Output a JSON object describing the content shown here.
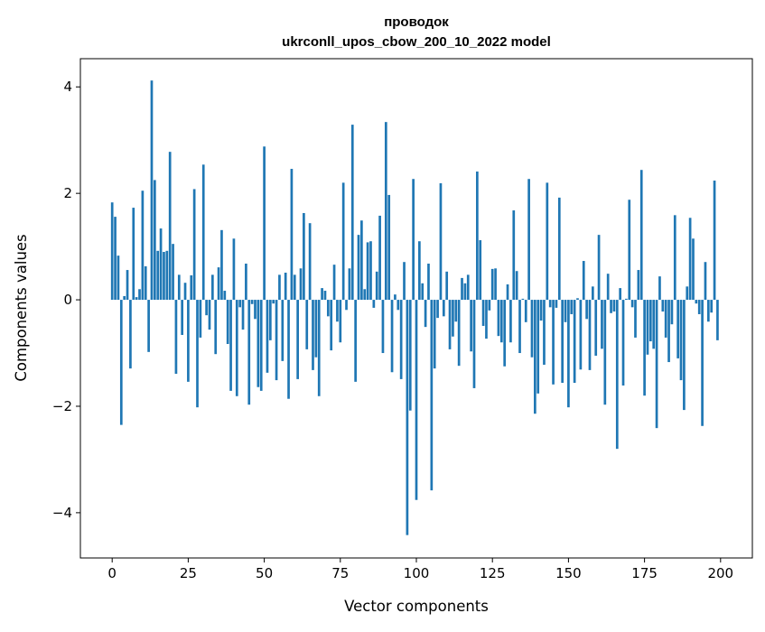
{
  "chart_data": {
    "type": "bar",
    "title": [
      "проводок",
      "ukrconll_upos_cbow_200_10_2022 model"
    ],
    "xlabel": "Vector components",
    "ylabel": "Components values",
    "xlim": [
      -10.45,
      210.45
    ],
    "ylim": [
      -4.85,
      4.53
    ],
    "xticks": [
      0,
      25,
      50,
      75,
      100,
      125,
      150,
      175,
      200
    ],
    "yticks": [
      -4,
      -2,
      0,
      2,
      4
    ],
    "xtick_labels": [
      "0",
      "25",
      "50",
      "75",
      "100",
      "125",
      "150",
      "175",
      "200"
    ],
    "ytick_labels": [
      "−4",
      "−2",
      "0",
      "2",
      "4"
    ],
    "grid": false,
    "bar_width": 0.8,
    "color": "#1f77b4",
    "values": [
      1.83,
      1.56,
      0.83,
      -2.35,
      0.07,
      0.56,
      -1.29,
      1.73,
      0.05,
      0.2,
      2.05,
      0.63,
      -0.98,
      4.12,
      2.25,
      0.92,
      1.34,
      0.9,
      0.92,
      2.78,
      1.05,
      -1.39,
      0.47,
      -0.66,
      0.32,
      -1.54,
      0.46,
      2.08,
      -2.02,
      -0.71,
      2.54,
      -0.29,
      -0.56,
      0.47,
      -1.02,
      0.61,
      1.31,
      0.17,
      -0.83,
      -1.71,
      1.15,
      -1.81,
      -0.14,
      -0.56,
      0.68,
      -1.97,
      -0.08,
      -0.36,
      -1.64,
      -1.71,
      2.88,
      -1.37,
      -0.76,
      -0.07,
      -1.51,
      0.47,
      -1.15,
      0.51,
      -1.86,
      2.46,
      0.47,
      -1.49,
      0.59,
      1.63,
      -0.93,
      1.44,
      -1.32,
      -1.08,
      -1.81,
      0.22,
      0.17,
      -0.31,
      -0.95,
      0.66,
      -0.41,
      -0.8,
      2.2,
      -0.19,
      0.59,
      3.29,
      -1.54,
      1.22,
      1.49,
      0.2,
      1.08,
      1.1,
      -0.15,
      0.53,
      1.58,
      -1.0,
      3.34,
      1.97,
      -1.36,
      0.1,
      -0.19,
      -1.49,
      0.71,
      -4.42,
      -2.08,
      2.27,
      -3.76,
      1.1,
      0.31,
      -0.51,
      0.68,
      -3.58,
      -1.29,
      -0.34,
      2.19,
      -0.31,
      0.53,
      -0.93,
      -0.69,
      -0.41,
      -1.24,
      0.41,
      0.31,
      0.47,
      -0.97,
      -1.66,
      2.41,
      1.12,
      -0.49,
      -0.73,
      -0.2,
      0.58,
      0.59,
      -0.68,
      -0.8,
      -1.25,
      0.29,
      -0.8,
      1.68,
      0.54,
      -1.0,
      0.02,
      -0.42,
      2.27,
      -1.08,
      -2.14,
      -1.76,
      -0.39,
      -1.22,
      2.2,
      -0.14,
      -1.59,
      -0.15,
      1.92,
      -1.56,
      -0.42,
      -2.02,
      -0.27,
      -1.56,
      0.03,
      -1.31,
      0.73,
      -0.36,
      -1.32,
      0.25,
      -1.05,
      1.22,
      -0.92,
      -1.97,
      0.49,
      -0.25,
      -0.22,
      -2.8,
      0.22,
      -1.61,
      0.02,
      1.88,
      -0.14,
      -0.71,
      0.56,
      2.44,
      -1.8,
      -1.03,
      -0.78,
      -0.92,
      -2.41,
      0.44,
      -0.22,
      -0.71,
      -1.17,
      -0.46,
      1.59,
      -1.1,
      -1.51,
      -2.07,
      0.25,
      1.54,
      1.15,
      -0.07,
      -0.27,
      -2.37,
      0.71,
      -0.41,
      -0.24,
      2.24,
      -0.76
    ]
  }
}
